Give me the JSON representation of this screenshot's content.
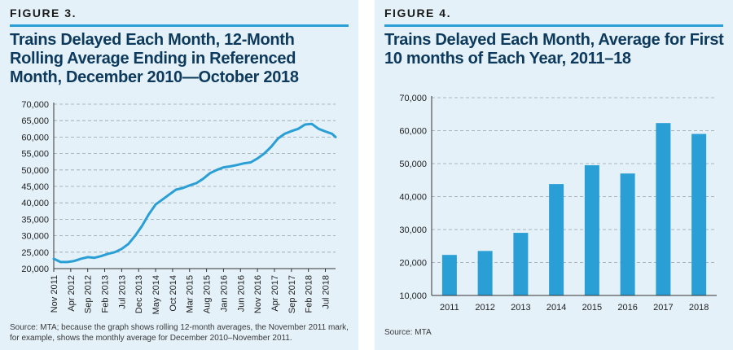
{
  "chart_data": [
    {
      "type": "line",
      "figure_label": "FIGURE 3.",
      "title": "Trains Delayed Each Month, 12-Month Rolling Average Ending in Referenced Month, December 2010—October 2018",
      "source": "Source: MTA; because the graph shows rolling 12-month averages, the November 2011 mark, for example, shows the monthly average for December 2010–November 2011.",
      "x_ticks": [
        "Nov 2011",
        "Apr 2012",
        "Sep 2012",
        "Feb 2013",
        "Jul 2013",
        "Dec 2013",
        "May 2014",
        "Oct 2014",
        "Mar 2015",
        "Aug 2015",
        "Jan 2016",
        "Jun 2016",
        "Nov 2016",
        "Apr 2017",
        "Sep 2017",
        "Feb 2018",
        "Jul 2018"
      ],
      "y_ticks": [
        "20,000",
        "25,000",
        "30,000",
        "35,000",
        "40,000",
        "45,000",
        "50,000",
        "55,000",
        "60,000",
        "65,000",
        "70,000"
      ],
      "ylim": [
        20000,
        70000
      ],
      "grid": true,
      "color": "#2a9fd6",
      "x": [
        "2011-11",
        "2012-01",
        "2012-03",
        "2012-05",
        "2012-07",
        "2012-09",
        "2012-11",
        "2013-01",
        "2013-03",
        "2013-05",
        "2013-07",
        "2013-09",
        "2013-11",
        "2014-01",
        "2014-03",
        "2014-05",
        "2014-07",
        "2014-09",
        "2014-11",
        "2015-01",
        "2015-03",
        "2015-05",
        "2015-07",
        "2015-09",
        "2015-11",
        "2016-01",
        "2016-03",
        "2016-05",
        "2016-07",
        "2016-09",
        "2016-11",
        "2017-01",
        "2017-03",
        "2017-05",
        "2017-07",
        "2017-09",
        "2017-11",
        "2018-01",
        "2018-03",
        "2018-05",
        "2018-07",
        "2018-09",
        "2018-10"
      ],
      "y": [
        23000,
        22000,
        22000,
        22300,
        23000,
        23500,
        23300,
        23800,
        24500,
        25000,
        26000,
        27500,
        30000,
        33000,
        36500,
        39500,
        41000,
        42500,
        44000,
        44500,
        45300,
        46000,
        47300,
        49000,
        50000,
        50800,
        51100,
        51500,
        52000,
        52300,
        53500,
        55000,
        57000,
        59500,
        61000,
        61800,
        62500,
        63800,
        64000,
        62500,
        61700,
        61000,
        60000
      ]
    },
    {
      "type": "bar",
      "figure_label": "FIGURE 4.",
      "title": "Trains Delayed Each Month, Average for First 10 months of Each Year, 2011–18",
      "source": "Source: MTA",
      "categories": [
        "2011",
        "2012",
        "2013",
        "2014",
        "2015",
        "2016",
        "2017",
        "2018"
      ],
      "values": [
        22300,
        23500,
        29000,
        43800,
        49500,
        47000,
        62300,
        59000
      ],
      "y_ticks": [
        "10,000",
        "20,000",
        "30,000",
        "40,000",
        "50,000",
        "60,000",
        "70,000"
      ],
      "ylim": [
        10000,
        70000
      ],
      "grid": true,
      "color": "#2a9fd6"
    }
  ]
}
